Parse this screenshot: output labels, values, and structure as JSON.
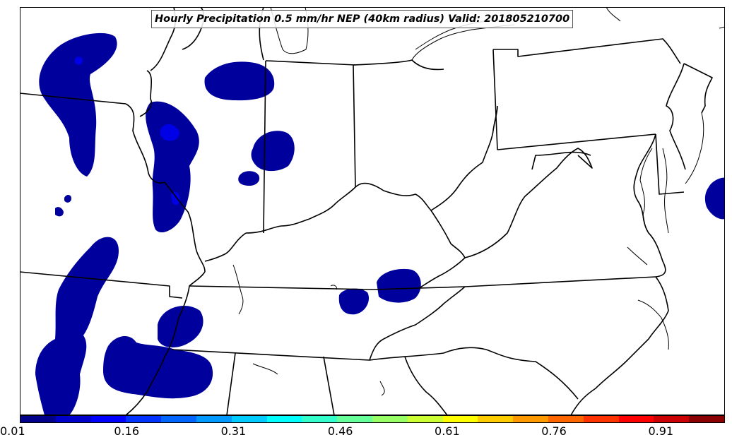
{
  "title": "Hourly Precipitation 0.5 mm/hr NEP (40km radius) Valid: 201805210700",
  "colorbar": {
    "min": 0.01,
    "max": 1.0,
    "tick_labels": [
      "0.01",
      "0.16",
      "0.31",
      "0.46",
      "0.61",
      "0.76",
      "0.91"
    ],
    "tick_values": [
      0.01,
      0.16,
      0.31,
      0.46,
      0.61,
      0.76,
      0.91
    ],
    "colors": [
      "#00008b",
      "#0000cd",
      "#0000ff",
      "#0033ff",
      "#0066ff",
      "#0099ff",
      "#00ccff",
      "#00ffff",
      "#33ffcc",
      "#66ff99",
      "#99ff66",
      "#ccff33",
      "#ffff00",
      "#ffcc00",
      "#ff9900",
      "#ff6600",
      "#ff3300",
      "#ff0000",
      "#cc0000",
      "#8b0000"
    ]
  },
  "colors": {
    "probability_fill_low": "#00009c",
    "probability_fill_mid": "#0000e0",
    "boundary": "#000000",
    "background": "#ffffff"
  }
}
